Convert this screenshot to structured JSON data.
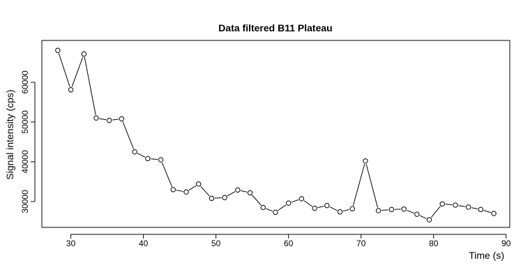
{
  "chart_data": {
    "type": "line",
    "title": "Data filtered B11 Plateau",
    "xlabel": "Time (s)",
    "ylabel": "Signal intensity (cps)",
    "xlim": [
      26,
      90.5
    ],
    "ylim": [
      23500,
      70500
    ],
    "xticks": [
      30,
      40,
      50,
      60,
      70,
      80,
      90
    ],
    "yticks": [
      30000,
      40000,
      50000,
      60000
    ],
    "grid": false,
    "series": [
      {
        "name": "",
        "markers": "open-circle",
        "x": [
          28.2,
          30.0,
          31.8,
          33.5,
          35.3,
          37.0,
          38.8,
          40.6,
          42.4,
          44.1,
          45.9,
          47.6,
          49.4,
          51.2,
          53.0,
          54.7,
          56.5,
          58.2,
          60.0,
          61.8,
          63.6,
          65.3,
          67.1,
          68.8,
          70.6,
          72.4,
          74.2,
          75.9,
          77.7,
          79.4,
          81.2,
          83.0,
          84.8,
          86.5,
          88.3
        ],
        "y": [
          68000,
          58100,
          67100,
          51000,
          50400,
          50800,
          42500,
          40800,
          40500,
          33000,
          32400,
          34400,
          30800,
          31000,
          32900,
          32200,
          28500,
          27300,
          29600,
          30700,
          28300,
          29000,
          27400,
          28200,
          40200,
          27700,
          28000,
          28100,
          26800,
          25400,
          29400,
          29100,
          28600,
          28000,
          27000
        ]
      }
    ]
  }
}
